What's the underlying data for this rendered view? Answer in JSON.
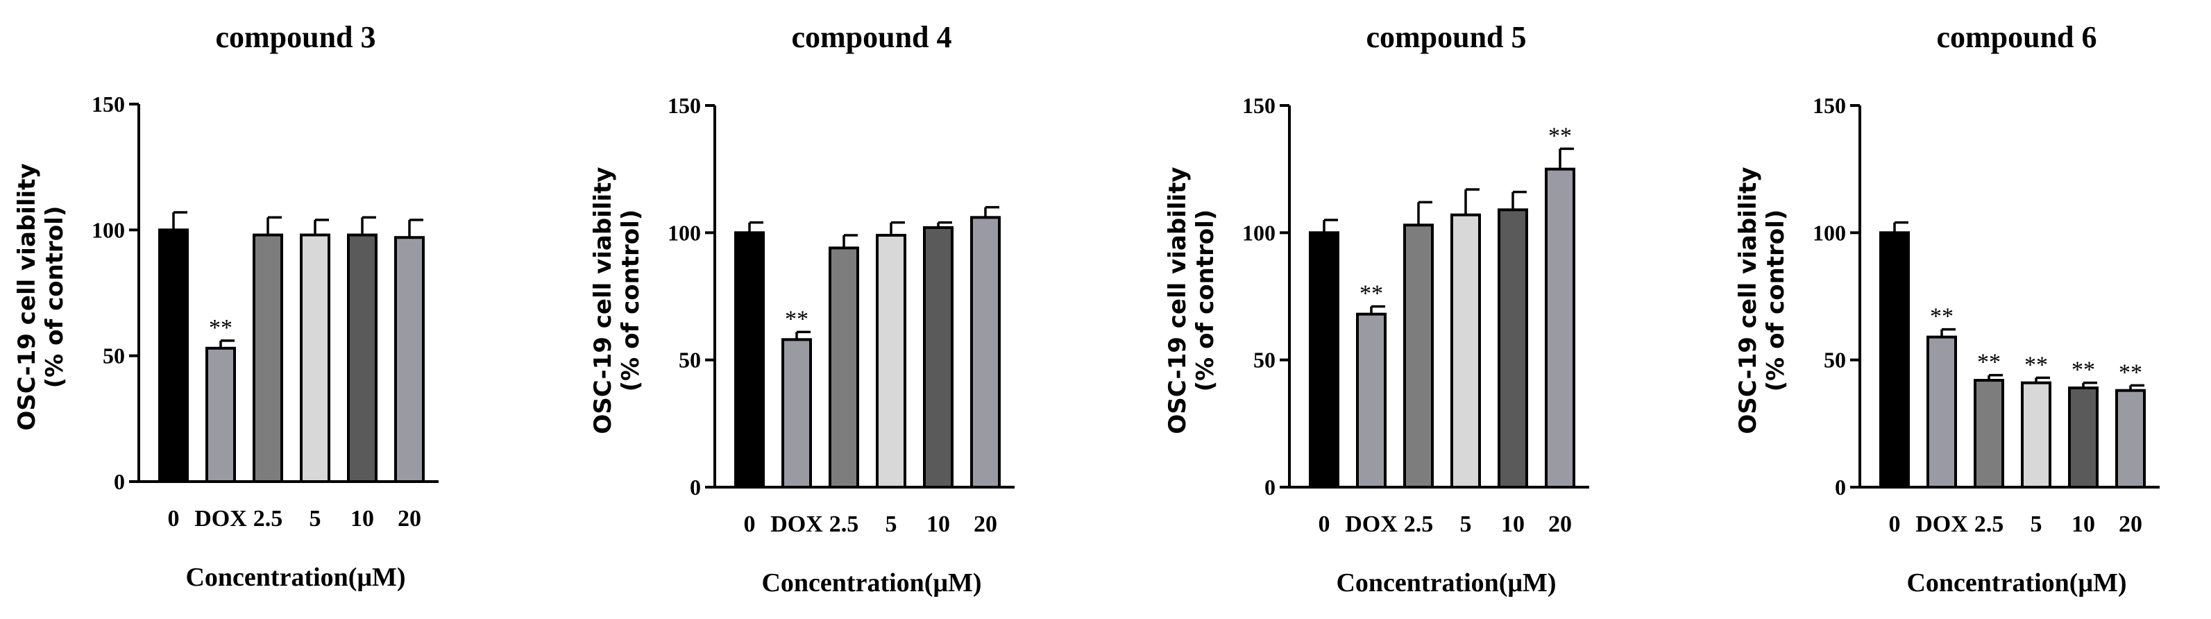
{
  "chart_data": [
    {
      "type": "bar",
      "title": "compound  3",
      "xlabel": "Concentration(μM)",
      "ylabel_line1": "OSC-19 cell viability",
      "ylabel_line2": "(% of control)",
      "ylim": [
        0,
        150
      ],
      "yticks": [
        "0",
        "50",
        "100",
        "150"
      ],
      "categories": [
        "0",
        "DOX",
        "2.5",
        "5",
        "10",
        "20"
      ],
      "values": [
        100,
        53,
        98,
        98,
        98,
        97
      ],
      "errors": [
        7,
        3,
        7,
        6,
        7,
        7
      ],
      "significance": [
        "",
        "**",
        "",
        "",
        "",
        ""
      ],
      "colors": [
        "#000000",
        "#9a9aa2",
        "#7d7d7d",
        "#d8d8d8",
        "#5a5a5a",
        "#9a9aa2"
      ]
    },
    {
      "type": "bar",
      "title": "compound  4",
      "xlabel": "Concentration(μM)",
      "ylabel_line1": "OSC-19 cell viability",
      "ylabel_line2": "(% of control)",
      "ylim": [
        0,
        150
      ],
      "yticks": [
        "0",
        "50",
        "100",
        "150"
      ],
      "categories": [
        "0",
        "DOX",
        "2.5",
        "5",
        "10",
        "20"
      ],
      "values": [
        100,
        58,
        94,
        99,
        102,
        106
      ],
      "errors": [
        4,
        3,
        5,
        5,
        2,
        4
      ],
      "significance": [
        "",
        "**",
        "",
        "",
        "",
        ""
      ],
      "colors": [
        "#000000",
        "#9a9aa2",
        "#7d7d7d",
        "#d8d8d8",
        "#5a5a5a",
        "#9a9aa2"
      ]
    },
    {
      "type": "bar",
      "title": "compound  5",
      "xlabel": "Concentration(μM)",
      "ylabel_line1": "OSC-19 cell viability",
      "ylabel_line2": "(% of control)",
      "ylim": [
        0,
        150
      ],
      "yticks": [
        "0",
        "50",
        "100",
        "150"
      ],
      "categories": [
        "0",
        "DOX",
        "2.5",
        "5",
        "10",
        "20"
      ],
      "values": [
        100,
        68,
        103,
        107,
        109,
        125
      ],
      "errors": [
        5,
        3,
        9,
        10,
        7,
        8
      ],
      "significance": [
        "",
        "**",
        "",
        "",
        "",
        "**"
      ],
      "colors": [
        "#000000",
        "#9a9aa2",
        "#7d7d7d",
        "#d8d8d8",
        "#5a5a5a",
        "#9a9aa2"
      ]
    },
    {
      "type": "bar",
      "title": "compound 6",
      "xlabel": "Concentration(μM)",
      "ylabel_line1": "OSC-19 cell viability",
      "ylabel_line2": "(% of control)",
      "ylim": [
        0,
        150
      ],
      "yticks": [
        "0",
        "50",
        "100",
        "150"
      ],
      "categories": [
        "0",
        "DOX",
        "2.5",
        "5",
        "10",
        "20"
      ],
      "values": [
        100,
        59,
        42,
        41,
        39,
        38
      ],
      "errors": [
        4,
        3,
        2,
        2,
        2,
        2
      ],
      "significance": [
        "",
        "**",
        "**",
        "**",
        "**",
        "**"
      ],
      "colors": [
        "#000000",
        "#9a9aa2",
        "#7d7d7d",
        "#d8d8d8",
        "#5a5a5a",
        "#9a9aa2"
      ]
    }
  ]
}
